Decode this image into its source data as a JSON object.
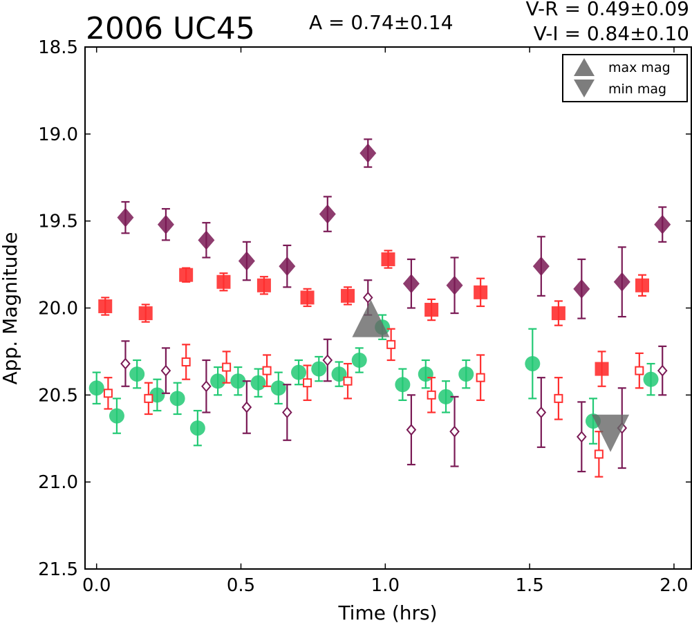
{
  "chart_data": {
    "type": "scatter",
    "title": "2006 UC45",
    "annotations": {
      "amplitude": "A  = 0.74±0.14",
      "vr": "V-R = 0.49±0.09",
      "vi": "V-I  = 0.84±0.10"
    },
    "xlabel": "Time (hrs)",
    "ylabel": "App. Magnitude",
    "xlim": [
      -0.04,
      2.06
    ],
    "ylim": [
      21.5,
      18.5
    ],
    "y_inverted": true,
    "xticks": [
      "0.0",
      "0.5",
      "1.0",
      "1.5",
      "2.0"
    ],
    "yticks": [
      "18.5",
      "19.0",
      "19.5",
      "20.0",
      "20.5",
      "21.0",
      "21.5"
    ],
    "legend_position": "top-right",
    "legend": [
      {
        "label": "max mag",
        "marker": "triangle-up"
      },
      {
        "label": "min mag",
        "marker": "triangle-down"
      }
    ],
    "colors": {
      "green": "#22c974",
      "red": "#ff2f2f",
      "purple": "#7a1a55",
      "gray": "#666666"
    },
    "series": [
      {
        "marker": "circle-filled",
        "color": "#22c974",
        "points": [
          [
            0.0,
            20.46,
            0.09
          ],
          [
            0.07,
            20.62,
            0.1
          ],
          [
            0.14,
            20.38,
            0.08
          ],
          [
            0.21,
            20.5,
            0.09
          ],
          [
            0.28,
            20.52,
            0.09
          ],
          [
            0.35,
            20.69,
            0.1
          ],
          [
            0.42,
            20.42,
            0.08
          ],
          [
            0.49,
            20.42,
            0.08
          ],
          [
            0.56,
            20.43,
            0.08
          ],
          [
            0.63,
            20.46,
            0.09
          ],
          [
            0.7,
            20.37,
            0.07
          ],
          [
            0.77,
            20.35,
            0.07
          ],
          [
            0.84,
            20.38,
            0.07
          ],
          [
            0.91,
            20.3,
            0.07
          ],
          [
            0.99,
            20.11,
            0.07
          ],
          [
            1.06,
            20.44,
            0.09
          ],
          [
            1.14,
            20.38,
            0.08
          ],
          [
            1.21,
            20.51,
            0.09
          ],
          [
            1.28,
            20.38,
            0.08
          ],
          [
            1.51,
            20.32,
            0.2
          ],
          [
            1.72,
            20.65,
            0.13
          ],
          [
            1.92,
            20.41,
            0.09
          ]
        ]
      },
      {
        "marker": "square-filled",
        "color": "#ff2f2f",
        "points": [
          [
            0.03,
            19.99,
            0.05
          ],
          [
            0.17,
            20.03,
            0.05
          ],
          [
            0.31,
            19.81,
            0.04
          ],
          [
            0.44,
            19.85,
            0.05
          ],
          [
            0.58,
            19.87,
            0.05
          ],
          [
            0.73,
            19.94,
            0.05
          ],
          [
            0.87,
            19.93,
            0.05
          ],
          [
            1.01,
            19.72,
            0.05
          ],
          [
            1.16,
            20.01,
            0.06
          ],
          [
            1.33,
            19.91,
            0.08
          ],
          [
            1.6,
            20.03,
            0.07
          ],
          [
            1.75,
            20.35,
            0.1
          ],
          [
            1.89,
            19.87,
            0.06
          ]
        ]
      },
      {
        "marker": "square-open",
        "color": "#ff2f2f",
        "points": [
          [
            0.04,
            20.49,
            0.09
          ],
          [
            0.18,
            20.52,
            0.09
          ],
          [
            0.31,
            20.31,
            0.1
          ],
          [
            0.45,
            20.34,
            0.09
          ],
          [
            0.59,
            20.36,
            0.09
          ],
          [
            0.73,
            20.43,
            0.1
          ],
          [
            0.87,
            20.42,
            0.1
          ],
          [
            1.02,
            20.21,
            0.09
          ],
          [
            1.16,
            20.5,
            0.1
          ],
          [
            1.33,
            20.4,
            0.13
          ],
          [
            1.6,
            20.52,
            0.12
          ],
          [
            1.74,
            20.84,
            0.13
          ],
          [
            1.88,
            20.36,
            0.1
          ]
        ]
      },
      {
        "marker": "diamond-filled",
        "color": "#7a1a55",
        "points": [
          [
            0.1,
            19.48,
            0.09
          ],
          [
            0.24,
            19.52,
            0.09
          ],
          [
            0.38,
            19.61,
            0.1
          ],
          [
            0.52,
            19.73,
            0.11
          ],
          [
            0.66,
            19.76,
            0.12
          ],
          [
            0.8,
            19.46,
            0.1
          ],
          [
            0.94,
            19.11,
            0.08
          ],
          [
            1.09,
            19.86,
            0.14
          ],
          [
            1.24,
            19.87,
            0.16
          ],
          [
            1.54,
            19.76,
            0.17
          ],
          [
            1.68,
            19.89,
            0.17
          ],
          [
            1.82,
            19.85,
            0.2
          ],
          [
            1.96,
            19.52,
            0.1
          ]
        ]
      },
      {
        "marker": "diamond-open",
        "color": "#7a1a55",
        "points": [
          [
            0.1,
            20.32,
            0.13
          ],
          [
            0.24,
            20.36,
            0.13
          ],
          [
            0.38,
            20.45,
            0.15
          ],
          [
            0.52,
            20.57,
            0.15
          ],
          [
            0.66,
            20.6,
            0.16
          ],
          [
            0.8,
            20.3,
            0.12
          ],
          [
            0.94,
            19.94,
            0.1
          ],
          [
            1.09,
            20.7,
            0.2
          ],
          [
            1.24,
            20.71,
            0.2
          ],
          [
            1.54,
            20.6,
            0.2
          ],
          [
            1.68,
            20.74,
            0.2
          ],
          [
            1.82,
            20.69,
            0.23
          ],
          [
            1.96,
            20.36,
            0.14
          ]
        ]
      },
      {
        "marker": "triangle-up",
        "color": "#666666",
        "points": [
          [
            0.95,
            20.06,
            0
          ]
        ]
      },
      {
        "marker": "triangle-down",
        "color": "#666666",
        "points": [
          [
            1.78,
            20.72,
            0
          ]
        ]
      }
    ]
  }
}
